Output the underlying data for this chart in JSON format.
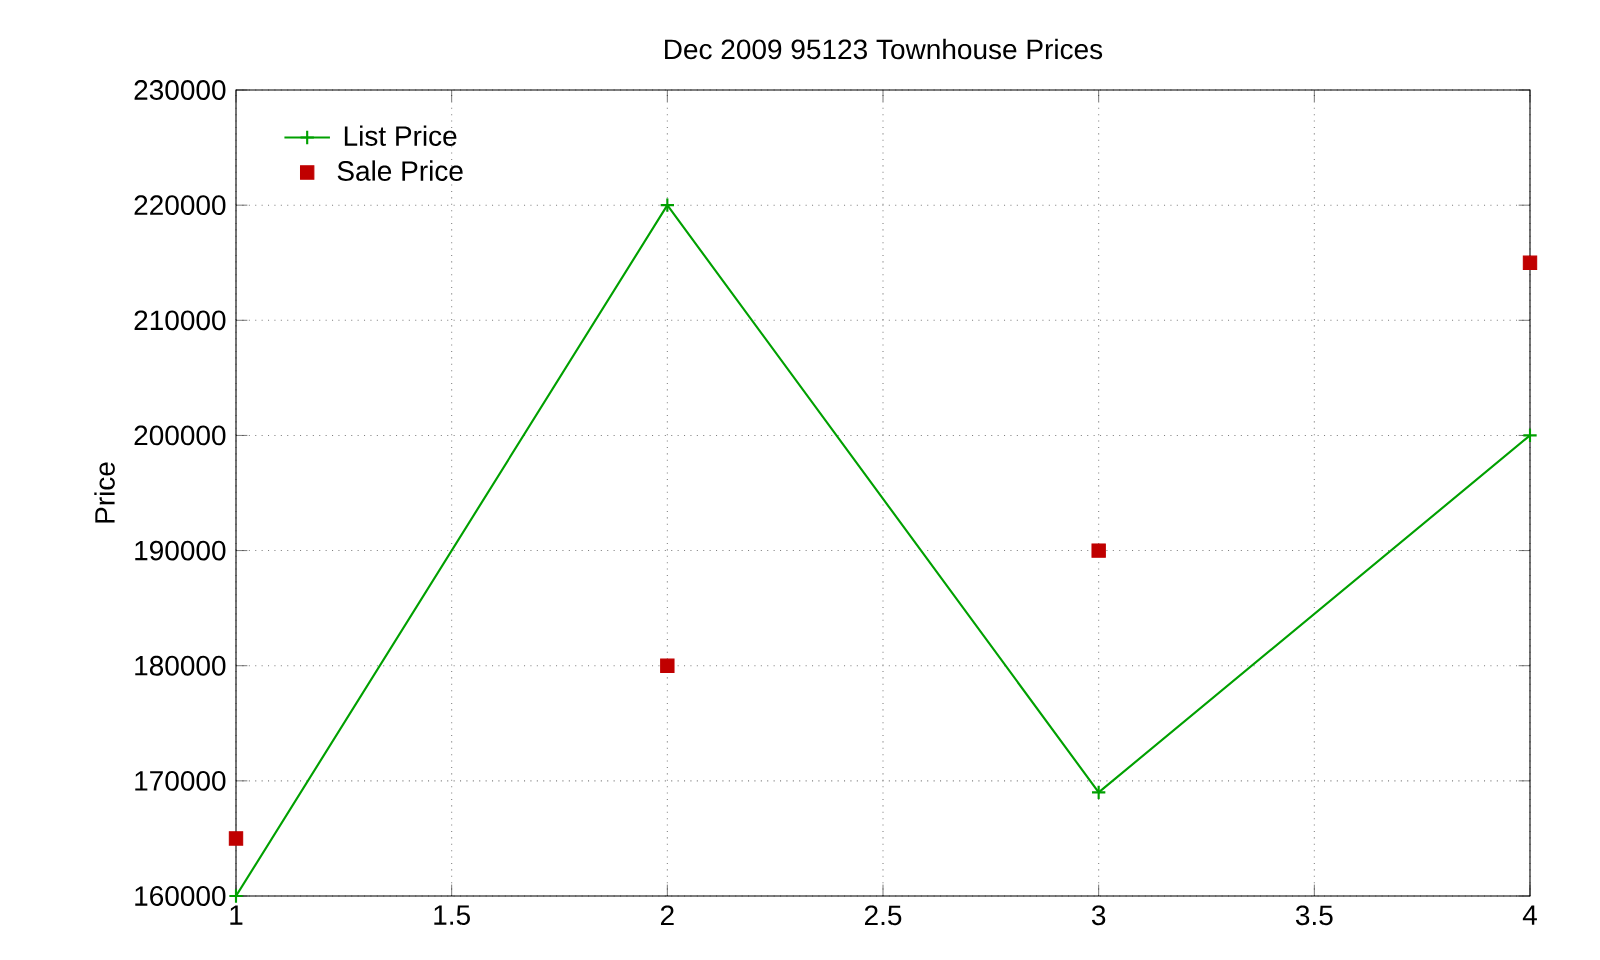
{
  "chart_data": {
    "type": "line",
    "title": "Dec 2009 95123 Townhouse Prices",
    "ylabel": "Price",
    "x": [
      1,
      2,
      3,
      4
    ],
    "series": [
      {
        "name": "List Price",
        "color": "#00a000",
        "marker": "cross",
        "values": [
          160000,
          220000,
          169000,
          200000
        ]
      },
      {
        "name": "Sale Price",
        "type": "scatter",
        "color": "#c00000",
        "marker": "square",
        "values": [
          165000,
          180000,
          190000,
          215000
        ]
      }
    ],
    "xlim": [
      1,
      4
    ],
    "xticks": [
      1,
      1.5,
      2,
      2.5,
      3,
      3.5,
      4
    ],
    "ylim": [
      160000,
      230000
    ],
    "yticks": [
      160000,
      170000,
      180000,
      190000,
      200000,
      210000,
      220000,
      230000
    ],
    "grid": true,
    "legend": "top left"
  }
}
